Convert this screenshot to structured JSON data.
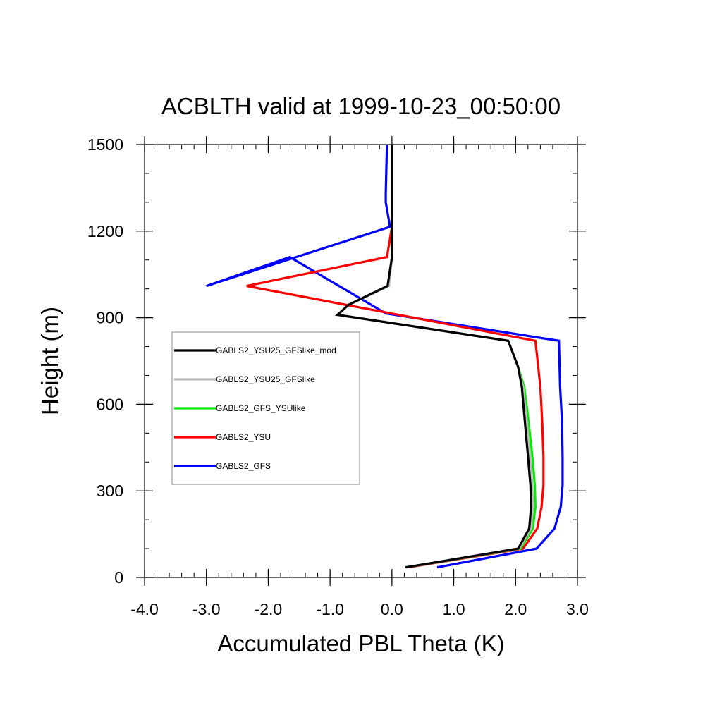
{
  "chart_data": {
    "type": "line",
    "title": "ACBLTH valid at 1999-10-23_00:50:00",
    "xlabel": "Accumulated PBL Theta (K)",
    "ylabel": "Height (m)",
    "xlim": [
      -4.0,
      3.0
    ],
    "ylim": [
      0,
      1500
    ],
    "xticks": [
      -4.0,
      -3.0,
      -2.0,
      -1.0,
      0.0,
      1.0,
      2.0,
      3.0
    ],
    "xtick_labels": [
      "-4.0",
      "-3.0",
      "-2.0",
      "-1.0",
      "0.0",
      "1.0",
      "2.0",
      "3.0"
    ],
    "yticks": [
      0,
      300,
      600,
      900,
      1200,
      1500
    ],
    "ytick_labels": [
      "0",
      "300",
      "600",
      "900",
      "1200",
      "1500"
    ],
    "grid": false,
    "legend_position": "left-middle",
    "series": [
      {
        "name": "GABLS2_GFS",
        "color": "#0000ff",
        "x": [
          0.73,
          2.34,
          2.63,
          2.73,
          2.76,
          2.76,
          2.75,
          2.72,
          2.7,
          -0.1,
          -1.65,
          -3.0,
          -0.03,
          -0.1,
          -0.1,
          -0.08
        ],
        "y": [
          35,
          100,
          170,
          245,
          320,
          420,
          540,
          660,
          820,
          915,
          1110,
          1010,
          1215,
          1300,
          1330,
          1500
        ]
      },
      {
        "name": "GABLS2_YSU",
        "color": "#ff0000",
        "x": [
          0.26,
          2.12,
          2.35,
          2.42,
          2.45,
          2.45,
          2.43,
          2.4,
          2.32,
          -2.35,
          -0.08,
          0.0,
          0.0
        ],
        "y": [
          35,
          100,
          170,
          245,
          320,
          420,
          540,
          660,
          820,
          1010,
          1110,
          1215,
          1500
        ]
      },
      {
        "name": "GABLS2_GFS_YSUlike",
        "color": "#00ee00",
        "x": [
          0.23,
          2.08,
          2.28,
          2.32,
          2.31,
          2.27,
          2.21,
          2.14,
          2.04,
          1.88,
          -0.88,
          -0.7,
          -0.05,
          0.0,
          0.0
        ],
        "y": [
          35,
          100,
          170,
          245,
          320,
          420,
          540,
          660,
          730,
          820,
          910,
          945,
          1010,
          1110,
          1500
        ]
      },
      {
        "name": "GABLS2_YSU25_GFSlike",
        "color": "#bbbbbb",
        "x": [
          0.23,
          2.06,
          2.25,
          2.28,
          2.27,
          2.23,
          2.18,
          2.12,
          2.04,
          1.88,
          -0.88,
          -0.7,
          -0.05,
          0.0,
          0.0
        ],
        "y": [
          35,
          100,
          170,
          245,
          320,
          420,
          540,
          660,
          730,
          820,
          910,
          945,
          1010,
          1110,
          1500
        ]
      },
      {
        "name": "GABLS2_YSU25_GFSlike_mod",
        "color": "#000000",
        "x": [
          0.22,
          2.04,
          2.22,
          2.25,
          2.24,
          2.2,
          2.15,
          2.1,
          2.04,
          1.88,
          -0.88,
          -0.7,
          -0.07,
          0.0,
          0.0
        ],
        "y": [
          35,
          100,
          170,
          245,
          320,
          420,
          540,
          660,
          730,
          820,
          910,
          945,
          1010,
          1110,
          1500
        ]
      }
    ],
    "legend_order": [
      "GABLS2_YSU25_GFSlike_mod",
      "GABLS2_YSU25_GFSlike",
      "GABLS2_GFS_YSUlike",
      "GABLS2_YSU",
      "GABLS2_GFS"
    ]
  }
}
